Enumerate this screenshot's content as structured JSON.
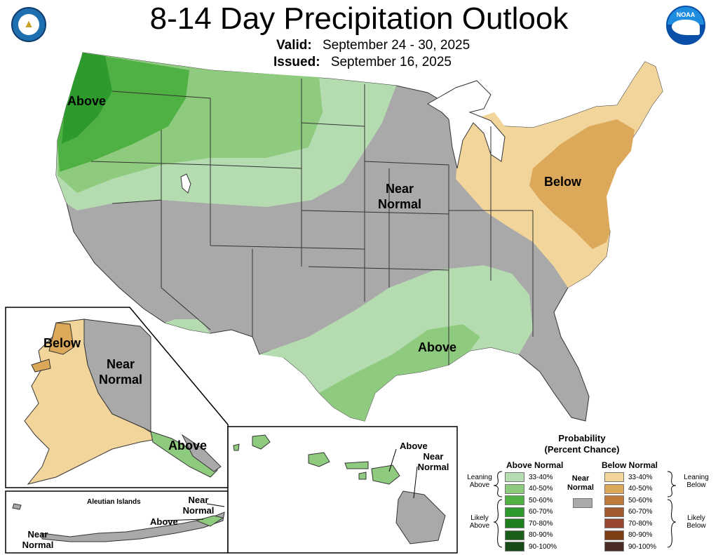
{
  "header": {
    "title": "8-14 Day Precipitation Outlook",
    "valid_label": "Valid:",
    "valid_value": "September 24 - 30, 2025",
    "issued_label": "Issued:",
    "issued_value": "September 16, 2025"
  },
  "logos": {
    "left": "department-of-commerce-seal",
    "right": "noaa-logo",
    "noaa_text": "NOAA"
  },
  "colors": {
    "above_33_40": "#b5dcb0",
    "above_40_50": "#8fcb7f",
    "above_50_60": "#4fb043",
    "above_60_70": "#2e9a2e",
    "above_70_80": "#1e7f1e",
    "above_80_90": "#1a5e1a",
    "above_90_100": "#174a17",
    "below_33_40": "#f2d59b",
    "below_40_50": "#dca85a",
    "below_50_60": "#bf7a3b",
    "below_60_70": "#a35a30",
    "below_70_80": "#9a4732",
    "below_80_90": "#7d3e15",
    "below_90_100": "#4a2a24",
    "near_normal": "#a9a9a9",
    "water": "#ffffff",
    "border": "#333333"
  },
  "map_labels": {
    "conus_above_nw": "Above",
    "conus_near_normal": "Near\nNormal",
    "conus_below": "Below",
    "conus_above_south": "Above",
    "ak_below": "Below",
    "ak_near_normal": "Near\nNormal",
    "ak_above": "Above",
    "aleutian_title": "Aleutian Islands",
    "aleutian_near_left": "Near\nNormal",
    "aleutian_near_right": "Near\nNormal",
    "aleutian_above": "Above",
    "hi_above": "Above",
    "hi_near": "Near\nNormal"
  },
  "legend": {
    "title": "Probability\n(Percent Chance)",
    "above_header": "Above Normal",
    "below_header": "Below Normal",
    "near_label": "Near\nNormal",
    "leaning_above": "Leaning\nAbove",
    "likely_above": "Likely\nAbove",
    "leaning_below": "Leaning\nBelow",
    "likely_below": "Likely\nBelow",
    "ranges": [
      "33-40%",
      "40-50%",
      "50-60%",
      "60-70%",
      "70-80%",
      "80-90%",
      "90-100%"
    ]
  }
}
